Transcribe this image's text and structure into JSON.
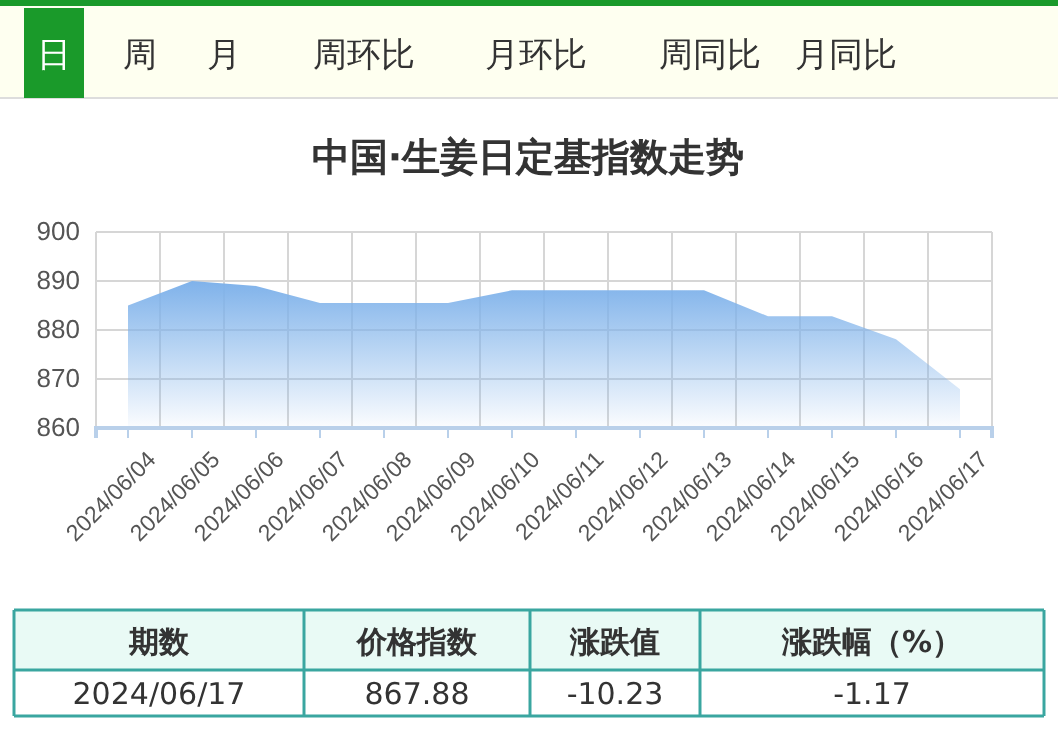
{
  "chart_data": {
    "type": "area",
    "title": "中国·生姜日定基指数走势",
    "categories": [
      "2024/06/04",
      "2024/06/05",
      "2024/06/06",
      "2024/06/07",
      "2024/06/08",
      "2024/06/09",
      "2024/06/10",
      "2024/06/11",
      "2024/06/12",
      "2024/06/13",
      "2024/06/14",
      "2024/06/15",
      "2024/06/16",
      "2024/06/17"
    ],
    "series": [
      {
        "color": "#7fb2ea",
        "values": [
          885.0,
          890.0,
          889.0,
          885.5,
          885.5,
          885.5,
          888.1,
          888.1,
          888.1,
          888.1,
          882.8,
          882.8,
          878.1,
          867.9
        ]
      }
    ],
    "ylim": [
      860,
      900
    ],
    "yticks": [
      860,
      870,
      880,
      890,
      900
    ],
    "grid": true,
    "annotations": [
      "日",
      "周",
      "月",
      "周环比",
      "月环比",
      "周同比",
      "月同比",
      "期数",
      "价格指数",
      "涨跌值",
      "涨跌幅（%）",
      "2024/06/17",
      "867.88",
      "-10.23",
      "-1.17"
    ]
  }
}
